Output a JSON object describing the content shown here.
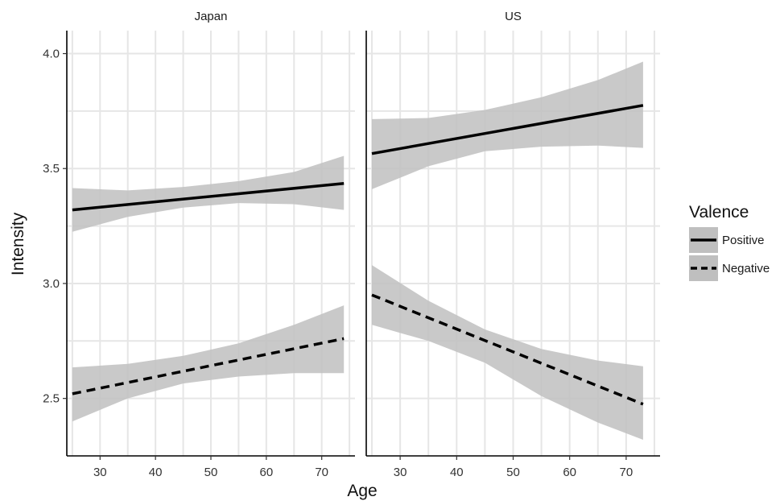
{
  "chart_data": {
    "type": "line",
    "x_label": "Age",
    "y_label": "Intensity",
    "x_ticks": [
      30,
      40,
      50,
      60,
      70
    ],
    "y_ticks": [
      2.5,
      3.0,
      3.5,
      4.0
    ],
    "y_tick_labels": [
      "2.5",
      "3.0",
      "3.5",
      "4.0"
    ],
    "y_range": [
      2.25,
      4.1
    ],
    "x_range": [
      24,
      76
    ],
    "grid": true,
    "legend": {
      "title": "Valence",
      "position": "right",
      "entries": [
        {
          "label": "Positive",
          "linestyle": "solid"
        },
        {
          "label": "Negative",
          "linestyle": "dashed"
        }
      ]
    },
    "colors": {
      "line": "#000000",
      "ribbon": "#bfbfbf",
      "grid": "#e6e6e6"
    },
    "panels": [
      {
        "name": "Japan",
        "series": [
          {
            "name": "Positive",
            "x": [
              25,
              74
            ],
            "y": [
              3.32,
              3.435
            ],
            "ribbon_x": [
              25,
              35,
              45,
              55,
              65,
              74
            ],
            "ribbon_lower": [
              3.225,
              3.29,
              3.33,
              3.35,
              3.345,
              3.32
            ],
            "ribbon_upper": [
              3.415,
              3.405,
              3.42,
              3.445,
              3.485,
              3.555
            ]
          },
          {
            "name": "Negative",
            "x": [
              25,
              74
            ],
            "y": [
              2.52,
              2.76
            ],
            "ribbon_x": [
              25,
              35,
              45,
              55,
              65,
              74
            ],
            "ribbon_lower": [
              2.4,
              2.5,
              2.565,
              2.595,
              2.61,
              2.61
            ],
            "ribbon_upper": [
              2.635,
              2.65,
              2.685,
              2.74,
              2.82,
              2.905
            ]
          }
        ]
      },
      {
        "name": "US",
        "series": [
          {
            "name": "Positive",
            "x": [
              25,
              73
            ],
            "y": [
              3.565,
              3.775
            ],
            "ribbon_x": [
              25,
              35,
              45,
              55,
              65,
              73
            ],
            "ribbon_lower": [
              3.41,
              3.51,
              3.575,
              3.595,
              3.6,
              3.59
            ],
            "ribbon_upper": [
              3.715,
              3.72,
              3.755,
              3.81,
              3.885,
              3.965
            ]
          },
          {
            "name": "Negative",
            "x": [
              25,
              73
            ],
            "y": [
              2.95,
              2.475
            ],
            "ribbon_x": [
              25,
              35,
              45,
              55,
              65,
              73
            ],
            "ribbon_lower": [
              2.82,
              2.75,
              2.655,
              2.51,
              2.395,
              2.32
            ],
            "ribbon_upper": [
              3.08,
              2.925,
              2.8,
              2.715,
              2.665,
              2.64
            ]
          }
        ]
      }
    ]
  }
}
